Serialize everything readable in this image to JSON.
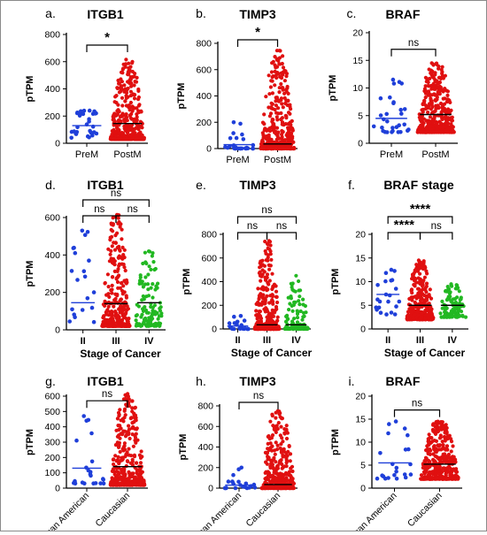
{
  "colors": {
    "blue": "#1f3fd9",
    "red": "#e01010",
    "green": "#22b822",
    "axis": "#000000",
    "median": "#000000",
    "bracket": "#000000"
  },
  "chart_data": [
    {
      "panel": "a.",
      "title": "ITGB1",
      "type": "scatter",
      "ylabel": "pTPM",
      "xlabel": "",
      "ylim": [
        0,
        800
      ],
      "yticks": [
        "0",
        "200",
        "400",
        "600",
        "800"
      ],
      "categories": [
        "PreM",
        "PostM"
      ],
      "groups": [
        {
          "label": "PreM",
          "color": "blue",
          "n": 30,
          "min": 40,
          "max": 240,
          "median": 130,
          "skew": 0.1
        },
        {
          "label": "PostM",
          "color": "red",
          "n": 420,
          "min": 30,
          "max": 615,
          "median": 145,
          "skew": 0.72
        }
      ],
      "brackets": [
        {
          "from": 0,
          "to": 1,
          "label": "*"
        }
      ]
    },
    {
      "panel": "b.",
      "title": "TIMP3",
      "type": "scatter",
      "ylabel": "pTPM",
      "xlabel": "",
      "ylim": [
        0,
        800
      ],
      "yticks": [
        "0",
        "200",
        "400",
        "600",
        "800"
      ],
      "categories": [
        "PreM",
        "PostM"
      ],
      "groups": [
        {
          "label": "PreM",
          "color": "blue",
          "n": 28,
          "min": 0,
          "max": 200,
          "median": 30,
          "skew": 0.8
        },
        {
          "label": "PostM",
          "color": "red",
          "n": 420,
          "min": 0,
          "max": 745,
          "median": 35,
          "skew": 0.86
        }
      ],
      "brackets": [
        {
          "from": 0,
          "to": 1,
          "label": "*"
        }
      ]
    },
    {
      "panel": "c.",
      "title": "BRAF",
      "type": "scatter",
      "ylabel": "pTPM",
      "xlabel": "",
      "ylim": [
        0,
        20
      ],
      "yticks": [
        "0",
        "5",
        "10",
        "15",
        "20"
      ],
      "categories": [
        "PreM",
        "PostM"
      ],
      "groups": [
        {
          "label": "PreM",
          "color": "blue",
          "n": 30,
          "min": 2,
          "max": 11.5,
          "median": 4.5,
          "skew": 0.35
        },
        {
          "label": "PostM",
          "color": "red",
          "n": 420,
          "min": 2,
          "max": 14.5,
          "median": 5.2,
          "skew": 0.5
        }
      ],
      "brackets": [
        {
          "from": 0,
          "to": 1,
          "label": "ns"
        }
      ]
    },
    {
      "panel": "d.",
      "title": "ITGB1",
      "type": "scatter",
      "ylabel": "pTPM",
      "xlabel": "Stage of Cancer",
      "ylim": [
        0,
        600
      ],
      "yticks": [
        "0",
        "200",
        "400",
        "600"
      ],
      "categories": [
        "II",
        "III",
        "IV"
      ],
      "groups": [
        {
          "label": "II",
          "color": "blue",
          "n": 20,
          "min": 40,
          "max": 530,
          "median": 145,
          "skew": 0.55
        },
        {
          "label": "III",
          "color": "red",
          "n": 330,
          "min": 20,
          "max": 615,
          "median": 140,
          "skew": 0.65
        },
        {
          "label": "IV",
          "color": "green",
          "n": 110,
          "min": 20,
          "max": 420,
          "median": 145,
          "skew": 0.45
        }
      ],
      "brackets": [
        {
          "from": 0,
          "to": 1,
          "label": "ns"
        },
        {
          "from": 1,
          "to": 2,
          "label": "ns"
        },
        {
          "from": 0,
          "to": 2,
          "label": "ns"
        }
      ]
    },
    {
      "panel": "e.",
      "title": "TIMP3",
      "type": "scatter",
      "ylabel": "pTPM",
      "xlabel": "Stage of Cancer",
      "ylim": [
        0,
        800
      ],
      "yticks": [
        "0",
        "200",
        "400",
        "600",
        "800"
      ],
      "categories": [
        "II",
        "III",
        "IV"
      ],
      "groups": [
        {
          "label": "II",
          "color": "blue",
          "n": 20,
          "min": 0,
          "max": 110,
          "median": 25,
          "skew": 0.75
        },
        {
          "label": "III",
          "color": "red",
          "n": 330,
          "min": 0,
          "max": 745,
          "median": 35,
          "skew": 0.86
        },
        {
          "label": "IV",
          "color": "green",
          "n": 110,
          "min": 0,
          "max": 450,
          "median": 35,
          "skew": 0.8
        }
      ],
      "brackets": [
        {
          "from": 0,
          "to": 1,
          "label": "ns"
        },
        {
          "from": 1,
          "to": 2,
          "label": "ns"
        },
        {
          "from": 0,
          "to": 2,
          "label": "ns"
        }
      ]
    },
    {
      "panel": "f.",
      "title": "BRAF stage",
      "type": "scatter",
      "ylabel": "pTPM",
      "xlabel": "Stage of Cancer",
      "ylim": [
        0,
        20
      ],
      "yticks": [
        "0",
        "5",
        "10",
        "15",
        "20"
      ],
      "categories": [
        "II",
        "III",
        "IV"
      ],
      "groups": [
        {
          "label": "II",
          "color": "blue",
          "n": 22,
          "min": 3,
          "max": 12.5,
          "median": 7.3,
          "skew": 0.2
        },
        {
          "label": "III",
          "color": "red",
          "n": 330,
          "min": 2,
          "max": 14.5,
          "median": 5,
          "skew": 0.5
        },
        {
          "label": "IV",
          "color": "green",
          "n": 110,
          "min": 2.5,
          "max": 9.5,
          "median": 5,
          "skew": 0.3
        }
      ],
      "brackets": [
        {
          "from": 0,
          "to": 1,
          "label": "****"
        },
        {
          "from": 1,
          "to": 2,
          "label": "ns"
        },
        {
          "from": 0,
          "to": 2,
          "label": "****"
        }
      ]
    },
    {
      "panel": "g.",
      "title": "ITGB1",
      "type": "scatter",
      "ylabel": "pTPM",
      "xlabel": "",
      "ylim": [
        0,
        600
      ],
      "yticks": [
        "0",
        "100",
        "200",
        "300",
        "400",
        "500",
        "600"
      ],
      "categories": [
        "African American",
        "Caucasian"
      ],
      "groups": [
        {
          "label": "African American",
          "color": "blue",
          "n": 22,
          "min": 30,
          "max": 470,
          "median": 130,
          "skew": 0.5
        },
        {
          "label": "Caucasian",
          "color": "red",
          "n": 420,
          "min": 20,
          "max": 615,
          "median": 140,
          "skew": 0.7
        }
      ],
      "brackets": [
        {
          "from": 0,
          "to": 1,
          "label": "ns"
        }
      ]
    },
    {
      "panel": "h.",
      "title": "TIMP3",
      "type": "scatter",
      "ylabel": "pTPM",
      "xlabel": "",
      "ylim": [
        0,
        800
      ],
      "yticks": [
        "0",
        "200",
        "400",
        "600",
        "800"
      ],
      "categories": [
        "African American",
        "Caucasian"
      ],
      "groups": [
        {
          "label": "African American",
          "color": "blue",
          "n": 22,
          "min": 0,
          "max": 200,
          "median": 30,
          "skew": 0.75
        },
        {
          "label": "Caucasian",
          "color": "red",
          "n": 420,
          "min": 0,
          "max": 750,
          "median": 35,
          "skew": 0.86
        }
      ],
      "brackets": [
        {
          "from": 0,
          "to": 1,
          "label": "ns"
        }
      ]
    },
    {
      "panel": "i.",
      "title": "BRAF",
      "type": "scatter",
      "ylabel": "pTPM",
      "xlabel": "",
      "ylim": [
        0,
        20
      ],
      "yticks": [
        "0",
        "5",
        "10",
        "15",
        "20"
      ],
      "categories": [
        "African American",
        "Caucasian"
      ],
      "groups": [
        {
          "label": "African American",
          "color": "blue",
          "n": 22,
          "min": 2,
          "max": 14.5,
          "median": 5.5,
          "skew": 0.45
        },
        {
          "label": "Caucasian",
          "color": "red",
          "n": 420,
          "min": 2,
          "max": 14.5,
          "median": 5.2,
          "skew": 0.5
        }
      ],
      "brackets": [
        {
          "from": 0,
          "to": 1,
          "label": "ns"
        }
      ]
    }
  ]
}
